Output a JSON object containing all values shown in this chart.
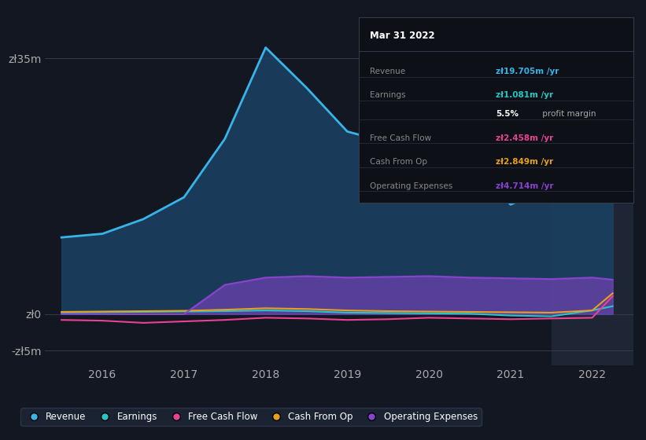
{
  "bg_color": "#131722",
  "plot_bg_color": "#131722",
  "highlight_bg": "#1e2535",
  "title": "Mar 31 2022",
  "ylabel_35": "zł35m",
  "ylabel_0": "zł0",
  "ylabel_neg5": "-zł5m",
  "xticks": [
    2016,
    2017,
    2018,
    2019,
    2020,
    2021,
    2022
  ],
  "ylim": [
    -7,
    40
  ],
  "revenue_color": "#38b4e8",
  "earnings_color": "#26c6c6",
  "fcf_color": "#e84393",
  "cashfromop_color": "#e8a020",
  "opex_color": "#8844cc",
  "revenue_fill_color": "#1a4060",
  "legend_bg": "#1e2535",
  "tooltip_bg": "#0d1117",
  "tooltip_border": "#333a4a",
  "x": [
    2015.5,
    2016.0,
    2016.5,
    2017.0,
    2017.5,
    2018.0,
    2018.5,
    2019.0,
    2019.5,
    2020.0,
    2020.5,
    2021.0,
    2021.5,
    2022.0,
    2022.25
  ],
  "revenue_data": [
    10.5,
    11.0,
    13.0,
    16.0,
    24.0,
    36.5,
    31.0,
    25.0,
    23.5,
    22.5,
    21.0,
    15.0,
    17.5,
    19.0,
    19.705
  ],
  "earnings_data": [
    0.2,
    0.25,
    0.3,
    0.35,
    0.4,
    0.5,
    0.4,
    0.2,
    0.15,
    0.1,
    0.05,
    -0.2,
    -0.3,
    0.5,
    1.081
  ],
  "fcf_data": [
    -0.8,
    -0.9,
    -1.2,
    -1.0,
    -0.8,
    -0.5,
    -0.6,
    -0.8,
    -0.7,
    -0.5,
    -0.6,
    -0.7,
    -0.6,
    -0.5,
    2.458
  ],
  "cashfromop_data": [
    0.3,
    0.35,
    0.4,
    0.45,
    0.6,
    0.8,
    0.7,
    0.5,
    0.4,
    0.35,
    0.3,
    0.25,
    0.2,
    0.5,
    2.849
  ],
  "opex_data": [
    0.0,
    0.0,
    0.0,
    0.0,
    4.0,
    5.0,
    5.2,
    5.0,
    5.1,
    5.2,
    5.0,
    4.9,
    4.8,
    5.0,
    4.714
  ],
  "highlight_x_start": 2021.5,
  "legend_items": [
    "Revenue",
    "Earnings",
    "Free Cash Flow",
    "Cash From Op",
    "Operating Expenses"
  ],
  "legend_colors": [
    "#38b4e8",
    "#26c6c6",
    "#e84393",
    "#e8a020",
    "#8844cc"
  ],
  "tooltip_rows": [
    {
      "label": "Revenue",
      "value": "zł19.705m /yr",
      "vcolor": "#38b4e8",
      "extra": null,
      "ecolor": null
    },
    {
      "label": "Earnings",
      "value": "zł1.081m /yr",
      "vcolor": "#26c6c6",
      "extra": null,
      "ecolor": null
    },
    {
      "label": "",
      "value": "5.5%",
      "vcolor": "#ffffff",
      "extra": " profit margin",
      "ecolor": "#aaaaaa"
    },
    {
      "label": "Free Cash Flow",
      "value": "zł2.458m /yr",
      "vcolor": "#e84393",
      "extra": null,
      "ecolor": null
    },
    {
      "label": "Cash From Op",
      "value": "zł2.849m /yr",
      "vcolor": "#e8a020",
      "extra": null,
      "ecolor": null
    },
    {
      "label": "Operating Expenses",
      "value": "zł4.714m /yr",
      "vcolor": "#8844cc",
      "extra": null,
      "ecolor": null
    }
  ]
}
